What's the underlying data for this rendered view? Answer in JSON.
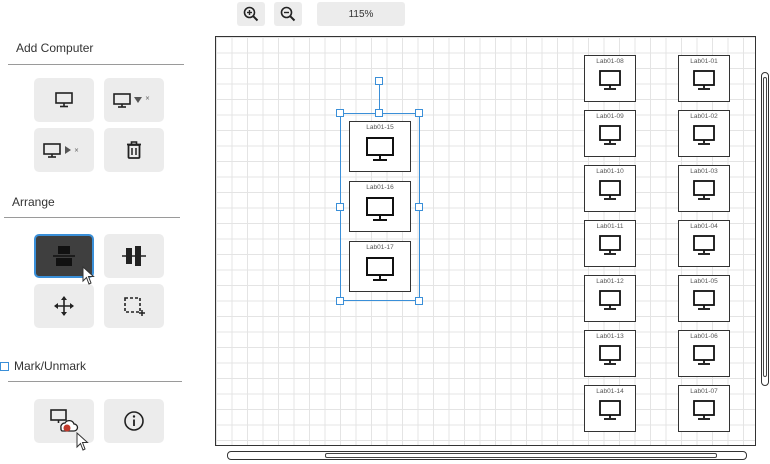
{
  "toolbar": {
    "zoom_in_icon": "zoom-in-icon",
    "zoom_out_icon": "zoom-out-icon",
    "zoom_level": "115%"
  },
  "sidebar": {
    "add_computer_title": "Add Computer",
    "arrange_title": "Arrange",
    "mark_title": "Mark/Unmark",
    "mark_checked": false
  },
  "canvas": {
    "selected_group": [
      "Lab01-15",
      "Lab01-16",
      "Lab01-17"
    ],
    "col_a": [
      "Lab01-08",
      "Lab01-09",
      "Lab01-10",
      "Lab01-11",
      "Lab01-12",
      "Lab01-13",
      "Lab01-14"
    ],
    "col_b": [
      "Lab01-01",
      "Lab01-02",
      "Lab01-03",
      "Lab01-04",
      "Lab01-05",
      "Lab01-06",
      "Lab01-07"
    ]
  },
  "colors": {
    "accent": "#3a8fd8",
    "button_bg": "#ececec",
    "active_bg": "#3f3f3f"
  }
}
